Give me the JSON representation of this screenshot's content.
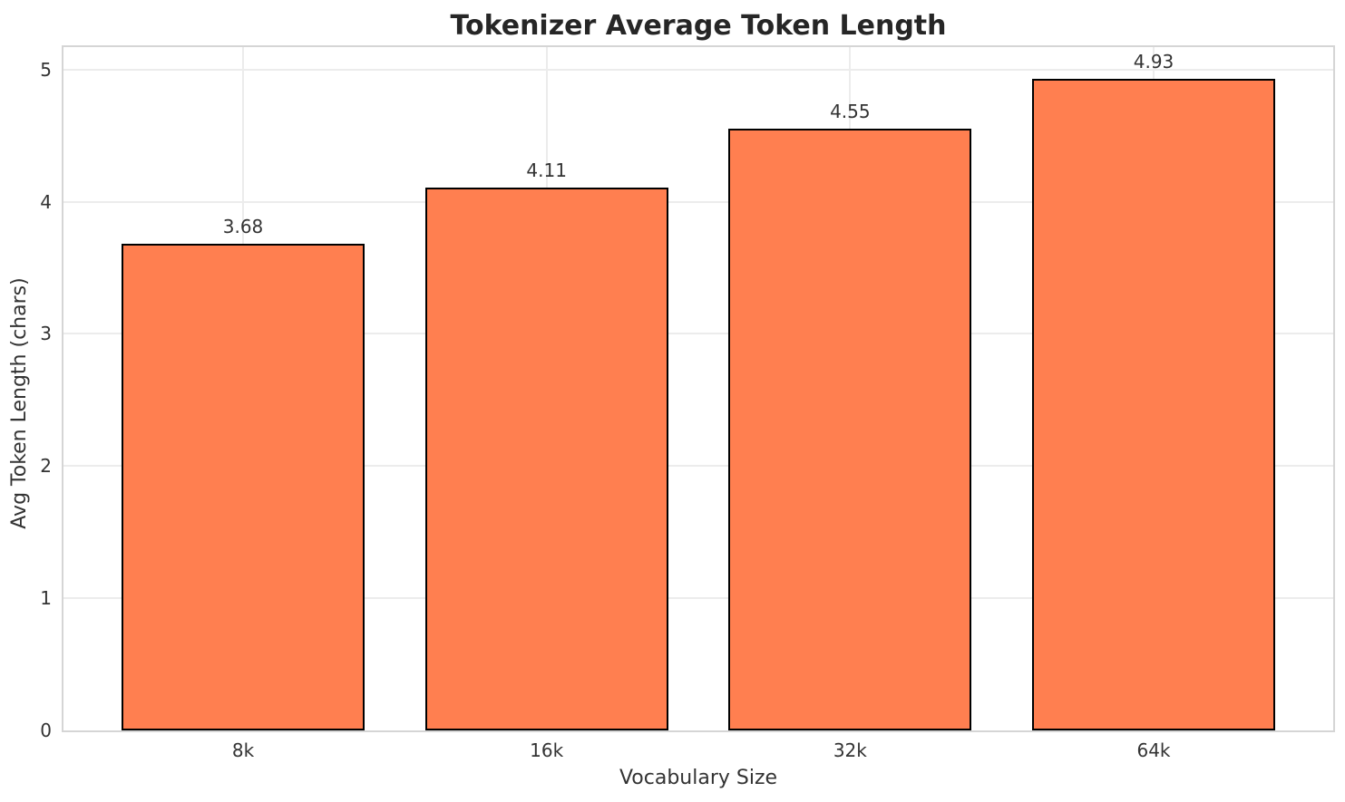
{
  "chart_data": {
    "type": "bar",
    "title": "Tokenizer Average Token Length",
    "xlabel": "Vocabulary Size",
    "ylabel": "Avg Token Length (chars)",
    "categories": [
      "8k",
      "16k",
      "32k",
      "64k"
    ],
    "values": [
      3.68,
      4.11,
      4.55,
      4.93
    ],
    "value_labels": [
      "3.68",
      "4.11",
      "4.55",
      "4.93"
    ],
    "yticks": [
      0,
      1,
      2,
      3,
      4,
      5
    ],
    "ylim": [
      0,
      5.17
    ],
    "grid": "on",
    "legend": "none",
    "bar_color": "#FF7F50",
    "bar_edge_color": "#000000",
    "grid_color": "#ECECEC",
    "axes_edge_color": "#D5D5D5",
    "background_color": "#FFFFFF",
    "text_color": "#262626"
  }
}
